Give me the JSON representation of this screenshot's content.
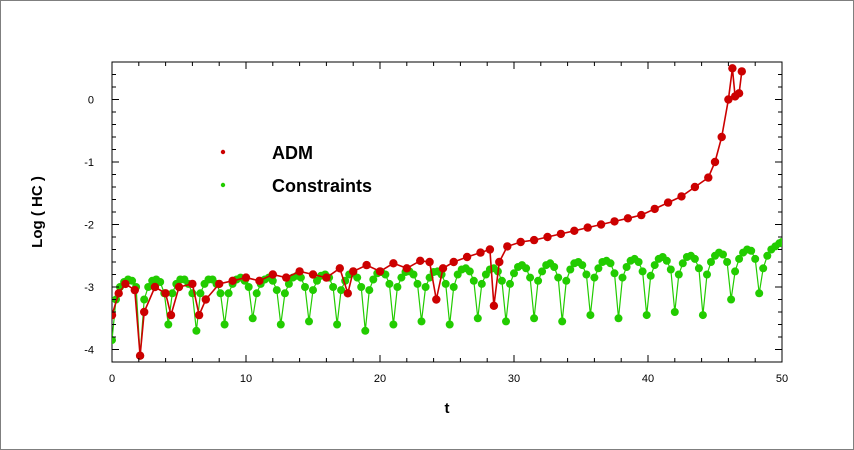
{
  "chart_data": {
    "type": "line",
    "xlabel": "t",
    "ylabel": "Log ( HC )",
    "xlim": [
      0,
      50
    ],
    "ylim": [
      -4.2,
      0.6
    ],
    "xticks": [
      "0",
      "10",
      "20",
      "30",
      "40",
      "50"
    ],
    "yticks": [
      "0",
      "-1",
      "-2",
      "-3",
      "-4"
    ],
    "grid": false,
    "legend": "upper-left",
    "series": [
      {
        "name": "ADM",
        "color": "#cc0000",
        "points": [
          [
            0.0,
            -3.45
          ],
          [
            0.5,
            -3.1
          ],
          [
            1.0,
            -2.95
          ],
          [
            1.7,
            -3.05
          ],
          [
            2.1,
            -4.1
          ],
          [
            2.4,
            -3.4
          ],
          [
            3.2,
            -3.0
          ],
          [
            4.0,
            -3.1
          ],
          [
            4.4,
            -3.45
          ],
          [
            5.0,
            -3.0
          ],
          [
            6.0,
            -2.95
          ],
          [
            6.5,
            -3.45
          ],
          [
            7.0,
            -3.2
          ],
          [
            8.0,
            -2.95
          ],
          [
            9.0,
            -2.9
          ],
          [
            10.0,
            -2.85
          ],
          [
            11.0,
            -2.9
          ],
          [
            12.0,
            -2.8
          ],
          [
            13.0,
            -2.85
          ],
          [
            14.0,
            -2.75
          ],
          [
            15.0,
            -2.8
          ],
          [
            16.0,
            -2.85
          ],
          [
            17.0,
            -2.7
          ],
          [
            17.6,
            -3.1
          ],
          [
            18.0,
            -2.75
          ],
          [
            19.0,
            -2.65
          ],
          [
            20.0,
            -2.75
          ],
          [
            21.0,
            -2.62
          ],
          [
            22.0,
            -2.7
          ],
          [
            23.0,
            -2.58
          ],
          [
            23.7,
            -2.6
          ],
          [
            24.2,
            -3.2
          ],
          [
            24.7,
            -2.7
          ],
          [
            25.5,
            -2.6
          ],
          [
            26.5,
            -2.52
          ],
          [
            27.5,
            -2.45
          ],
          [
            28.2,
            -2.4
          ],
          [
            28.5,
            -3.3
          ],
          [
            28.9,
            -2.6
          ],
          [
            29.5,
            -2.35
          ],
          [
            30.5,
            -2.28
          ],
          [
            31.5,
            -2.25
          ],
          [
            32.5,
            -2.2
          ],
          [
            33.5,
            -2.15
          ],
          [
            34.5,
            -2.1
          ],
          [
            35.5,
            -2.05
          ],
          [
            36.5,
            -2.0
          ],
          [
            37.5,
            -1.95
          ],
          [
            38.5,
            -1.9
          ],
          [
            39.5,
            -1.85
          ],
          [
            40.5,
            -1.75
          ],
          [
            41.5,
            -1.65
          ],
          [
            42.5,
            -1.55
          ],
          [
            43.5,
            -1.4
          ],
          [
            44.5,
            -1.25
          ],
          [
            45.0,
            -1.0
          ],
          [
            45.5,
            -0.6
          ],
          [
            46.0,
            0.0
          ],
          [
            46.3,
            0.5
          ],
          [
            46.5,
            0.05
          ],
          [
            46.8,
            0.1
          ],
          [
            47.0,
            0.45
          ]
        ]
      },
      {
        "name": "Constraints",
        "color": "#22cc00",
        "points": [
          [
            0.0,
            -3.85
          ],
          [
            0.3,
            -3.2
          ],
          [
            0.6,
            -3.0
          ],
          [
            0.9,
            -2.92
          ],
          [
            1.2,
            -2.88
          ],
          [
            1.5,
            -2.9
          ],
          [
            1.8,
            -3.0
          ],
          [
            2.1,
            -4.1
          ],
          [
            2.4,
            -3.2
          ],
          [
            2.7,
            -3.0
          ],
          [
            3.0,
            -2.9
          ],
          [
            3.3,
            -2.88
          ],
          [
            3.6,
            -2.92
          ],
          [
            3.9,
            -3.1
          ],
          [
            4.2,
            -3.6
          ],
          [
            4.5,
            -3.1
          ],
          [
            4.8,
            -2.95
          ],
          [
            5.1,
            -2.88
          ],
          [
            5.4,
            -2.88
          ],
          [
            5.7,
            -2.95
          ],
          [
            6.0,
            -3.1
          ],
          [
            6.3,
            -3.7
          ],
          [
            6.6,
            -3.1
          ],
          [
            6.9,
            -2.95
          ],
          [
            7.2,
            -2.88
          ],
          [
            7.5,
            -2.88
          ],
          [
            7.8,
            -2.95
          ],
          [
            8.1,
            -3.1
          ],
          [
            8.4,
            -3.6
          ],
          [
            8.7,
            -3.1
          ],
          [
            9.0,
            -2.95
          ],
          [
            9.3,
            -2.88
          ],
          [
            9.6,
            -2.85
          ],
          [
            9.9,
            -2.9
          ],
          [
            10.2,
            -3.0
          ],
          [
            10.5,
            -3.5
          ],
          [
            10.8,
            -3.1
          ],
          [
            11.1,
            -2.95
          ],
          [
            11.4,
            -2.88
          ],
          [
            11.7,
            -2.85
          ],
          [
            12.0,
            -2.9
          ],
          [
            12.3,
            -3.05
          ],
          [
            12.6,
            -3.6
          ],
          [
            12.9,
            -3.1
          ],
          [
            13.2,
            -2.95
          ],
          [
            13.5,
            -2.85
          ],
          [
            13.8,
            -2.82
          ],
          [
            14.1,
            -2.85
          ],
          [
            14.4,
            -3.0
          ],
          [
            14.7,
            -3.55
          ],
          [
            15.0,
            -3.05
          ],
          [
            15.3,
            -2.9
          ],
          [
            15.6,
            -2.82
          ],
          [
            15.9,
            -2.8
          ],
          [
            16.2,
            -2.85
          ],
          [
            16.5,
            -3.0
          ],
          [
            16.8,
            -3.6
          ],
          [
            17.1,
            -3.05
          ],
          [
            17.4,
            -2.9
          ],
          [
            17.7,
            -2.8
          ],
          [
            18.0,
            -2.78
          ],
          [
            18.3,
            -2.85
          ],
          [
            18.6,
            -3.0
          ],
          [
            18.9,
            -3.7
          ],
          [
            19.2,
            -3.05
          ],
          [
            19.5,
            -2.88
          ],
          [
            19.8,
            -2.78
          ],
          [
            20.1,
            -2.76
          ],
          [
            20.4,
            -2.8
          ],
          [
            20.7,
            -2.95
          ],
          [
            21.0,
            -3.6
          ],
          [
            21.3,
            -3.0
          ],
          [
            21.6,
            -2.85
          ],
          [
            21.9,
            -2.76
          ],
          [
            22.2,
            -2.75
          ],
          [
            22.5,
            -2.8
          ],
          [
            22.8,
            -2.95
          ],
          [
            23.1,
            -3.55
          ],
          [
            23.4,
            -3.0
          ],
          [
            23.7,
            -2.85
          ],
          [
            24.0,
            -2.76
          ],
          [
            24.3,
            -2.75
          ],
          [
            24.6,
            -2.8
          ],
          [
            24.9,
            -2.95
          ],
          [
            25.2,
            -3.6
          ],
          [
            25.5,
            -3.0
          ],
          [
            25.8,
            -2.8
          ],
          [
            26.1,
            -2.72
          ],
          [
            26.4,
            -2.7
          ],
          [
            26.7,
            -2.75
          ],
          [
            27.0,
            -2.9
          ],
          [
            27.3,
            -3.5
          ],
          [
            27.6,
            -2.95
          ],
          [
            27.9,
            -2.8
          ],
          [
            28.2,
            -2.72
          ],
          [
            28.5,
            -2.7
          ],
          [
            28.8,
            -2.75
          ],
          [
            29.1,
            -2.9
          ],
          [
            29.4,
            -3.55
          ],
          [
            29.7,
            -2.95
          ],
          [
            30.0,
            -2.78
          ],
          [
            30.3,
            -2.68
          ],
          [
            30.6,
            -2.65
          ],
          [
            30.9,
            -2.7
          ],
          [
            31.2,
            -2.85
          ],
          [
            31.5,
            -3.5
          ],
          [
            31.8,
            -2.9
          ],
          [
            32.1,
            -2.75
          ],
          [
            32.4,
            -2.65
          ],
          [
            32.7,
            -2.62
          ],
          [
            33.0,
            -2.68
          ],
          [
            33.3,
            -2.85
          ],
          [
            33.6,
            -3.55
          ],
          [
            33.9,
            -2.9
          ],
          [
            34.2,
            -2.72
          ],
          [
            34.5,
            -2.62
          ],
          [
            34.8,
            -2.6
          ],
          [
            35.1,
            -2.65
          ],
          [
            35.4,
            -2.8
          ],
          [
            35.7,
            -3.45
          ],
          [
            36.0,
            -2.85
          ],
          [
            36.3,
            -2.7
          ],
          [
            36.6,
            -2.6
          ],
          [
            36.9,
            -2.58
          ],
          [
            37.2,
            -2.62
          ],
          [
            37.5,
            -2.78
          ],
          [
            37.8,
            -3.5
          ],
          [
            38.1,
            -2.85
          ],
          [
            38.4,
            -2.68
          ],
          [
            38.7,
            -2.58
          ],
          [
            39.0,
            -2.55
          ],
          [
            39.3,
            -2.6
          ],
          [
            39.6,
            -2.75
          ],
          [
            39.9,
            -3.45
          ],
          [
            40.2,
            -2.82
          ],
          [
            40.5,
            -2.65
          ],
          [
            40.8,
            -2.55
          ],
          [
            41.1,
            -2.52
          ],
          [
            41.4,
            -2.58
          ],
          [
            41.7,
            -2.72
          ],
          [
            42.0,
            -3.4
          ],
          [
            42.3,
            -2.8
          ],
          [
            42.6,
            -2.62
          ],
          [
            42.9,
            -2.52
          ],
          [
            43.2,
            -2.5
          ],
          [
            43.5,
            -2.55
          ],
          [
            43.8,
            -2.7
          ],
          [
            44.1,
            -3.45
          ],
          [
            44.4,
            -2.8
          ],
          [
            44.7,
            -2.6
          ],
          [
            45.0,
            -2.5
          ],
          [
            45.3,
            -2.45
          ],
          [
            45.6,
            -2.48
          ],
          [
            45.9,
            -2.6
          ],
          [
            46.2,
            -3.2
          ],
          [
            46.5,
            -2.75
          ],
          [
            46.8,
            -2.55
          ],
          [
            47.1,
            -2.45
          ],
          [
            47.4,
            -2.4
          ],
          [
            47.7,
            -2.42
          ],
          [
            48.0,
            -2.55
          ],
          [
            48.3,
            -3.1
          ],
          [
            48.6,
            -2.7
          ],
          [
            48.9,
            -2.5
          ],
          [
            49.2,
            -2.4
          ],
          [
            49.5,
            -2.35
          ],
          [
            49.8,
            -2.3
          ],
          [
            50.0,
            -2.28
          ]
        ]
      }
    ]
  }
}
